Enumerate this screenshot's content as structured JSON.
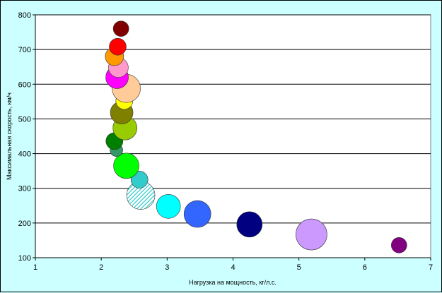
{
  "chart_data": {
    "type": "scatter",
    "xlabel": "Нагрузка на мощность, кг/л.с.",
    "ylabel": "Максимальная скорость, км/ч",
    "xlim": [
      1,
      7
    ],
    "ylim": [
      100,
      800
    ],
    "x_ticks": [
      "1",
      "2",
      "3",
      "4",
      "5",
      "6",
      "7"
    ],
    "y_ticks": [
      "100",
      "200",
      "300",
      "400",
      "500",
      "600",
      "700",
      "800"
    ],
    "grid": "horizontal",
    "background": "#ffffff",
    "points": [
      {
        "x": 6.52,
        "y": 136,
        "size": 11,
        "color": "#800080"
      },
      {
        "x": 5.19,
        "y": 167,
        "size": 22,
        "color": "#cc99ff"
      },
      {
        "x": 4.25,
        "y": 196,
        "size": 18,
        "color": "#000080"
      },
      {
        "x": 3.46,
        "y": 226,
        "size": 19,
        "color": "#3366ff"
      },
      {
        "x": 3.02,
        "y": 248,
        "size": 17,
        "color": "#00ffff"
      },
      {
        "x": 2.6,
        "y": 280,
        "size": 20,
        "color": "#66e0e8",
        "pattern": "hatch"
      },
      {
        "x": 2.58,
        "y": 325,
        "size": 12,
        "color": "#33cccc"
      },
      {
        "x": 2.38,
        "y": 365,
        "size": 18,
        "color": "#00ff00"
      },
      {
        "x": 2.23,
        "y": 410,
        "size": 9,
        "color": "#339966"
      },
      {
        "x": 2.2,
        "y": 436,
        "size": 12,
        "color": "#008000"
      },
      {
        "x": 2.36,
        "y": 474,
        "size": 17,
        "color": "#99cc00"
      },
      {
        "x": 2.31,
        "y": 518,
        "size": 16,
        "color": "#808000"
      },
      {
        "x": 2.35,
        "y": 552,
        "size": 12,
        "color": "#ffff00"
      },
      {
        "x": 2.38,
        "y": 588,
        "size": 20,
        "color": "#ffcc99"
      },
      {
        "x": 2.24,
        "y": 620,
        "size": 16,
        "color": "#ff00ff"
      },
      {
        "x": 2.26,
        "y": 648,
        "size": 14,
        "color": "#ff99cc"
      },
      {
        "x": 2.2,
        "y": 680,
        "size": 13,
        "color": "#ff9900"
      },
      {
        "x": 2.25,
        "y": 708,
        "size": 12,
        "color": "#ff0000"
      },
      {
        "x": 2.3,
        "y": 760,
        "size": 11,
        "color": "#800000"
      }
    ]
  }
}
